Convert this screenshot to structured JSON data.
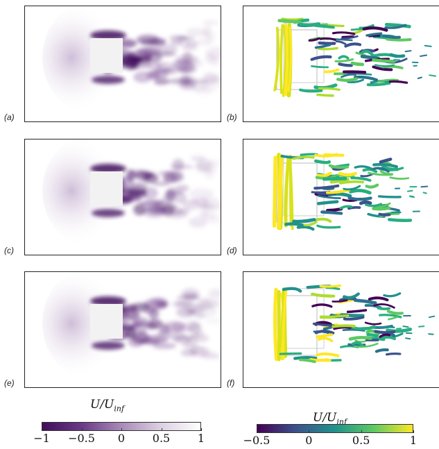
{
  "panels": [
    {
      "label": "(a)",
      "kind": "velocity"
    },
    {
      "label": "(b)",
      "kind": "vortex"
    },
    {
      "label": "(c)",
      "kind": "velocity"
    },
    {
      "label": "(d)",
      "kind": "vortex"
    },
    {
      "label": "(e)",
      "kind": "velocity"
    },
    {
      "label": "(f)",
      "kind": "vortex"
    }
  ],
  "colorbars": [
    {
      "title": "U/U",
      "title_sub": "inf",
      "colormap": "purples",
      "ticks": [
        "−1",
        "−0.5",
        "0",
        "0.5",
        "1"
      ],
      "range": [
        -1,
        1
      ]
    },
    {
      "title": "U/U",
      "title_sub": "inf",
      "colormap": "viridis",
      "ticks": [
        "−0.5",
        "0",
        "0.5",
        "1"
      ],
      "range": [
        -0.5,
        1
      ]
    }
  ],
  "colors": {
    "purple_dark": "#3f0f5c",
    "purple_mid": "#8a5aa0",
    "viridis_start": "#440154",
    "viridis_mid": "#21918c",
    "viridis_end": "#fde725",
    "obstacle": "#f2f2f2"
  }
}
